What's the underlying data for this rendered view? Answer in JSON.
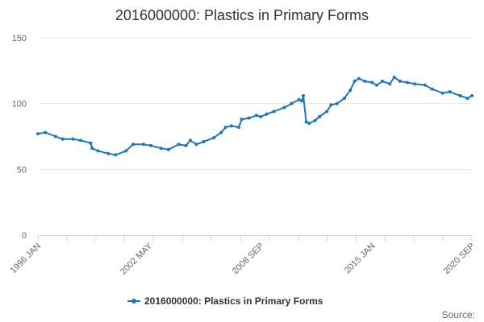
{
  "chart_data": {
    "type": "line",
    "title": "2016000000: Plastics in Primary Forms",
    "xlabel": "",
    "ylabel": "",
    "x_range": [
      "1996 JAN",
      "2020 SEP"
    ],
    "x_ticks": [
      "1996 JAN",
      "2002 MAY",
      "2008 SEP",
      "2015 JAN",
      "2020 SEP"
    ],
    "ylim": [
      0,
      150
    ],
    "y_ticks": [
      0,
      50,
      100,
      150
    ],
    "grid": true,
    "legend_position": "bottom",
    "series": [
      {
        "name": "2016000000: Plastics in Primary Forms",
        "color": "#1f77b4",
        "marker": "circle",
        "points": [
          [
            "1996-01",
            77
          ],
          [
            "1996-06",
            78
          ],
          [
            "1997-01",
            75
          ],
          [
            "1997-06",
            73
          ],
          [
            "1998-01",
            73
          ],
          [
            "1998-06",
            72
          ],
          [
            "1999-01",
            70
          ],
          [
            "1999-02",
            66
          ],
          [
            "1999-06",
            64
          ],
          [
            "2000-01",
            62
          ],
          [
            "2000-06",
            61
          ],
          [
            "2001-01",
            64
          ],
          [
            "2001-06",
            69
          ],
          [
            "2002-01",
            69
          ],
          [
            "2002-06",
            68
          ],
          [
            "2003-01",
            66
          ],
          [
            "2003-06",
            65
          ],
          [
            "2004-01",
            69
          ],
          [
            "2004-06",
            68
          ],
          [
            "2004-09",
            72
          ],
          [
            "2005-01",
            69
          ],
          [
            "2005-06",
            71
          ],
          [
            "2006-01",
            74
          ],
          [
            "2006-06",
            78
          ],
          [
            "2006-09",
            82
          ],
          [
            "2007-01",
            83
          ],
          [
            "2007-06",
            82
          ],
          [
            "2007-08",
            88
          ],
          [
            "2008-01",
            89
          ],
          [
            "2008-06",
            91
          ],
          [
            "2008-09",
            90
          ],
          [
            "2009-01",
            92
          ],
          [
            "2009-06",
            94
          ],
          [
            "2010-01",
            97
          ],
          [
            "2010-06",
            100
          ],
          [
            "2010-11",
            103
          ],
          [
            "2011-01",
            102
          ],
          [
            "2011-02",
            106
          ],
          [
            "2011-04",
            86
          ],
          [
            "2011-06",
            85
          ],
          [
            "2011-10",
            87
          ],
          [
            "2012-01",
            90
          ],
          [
            "2012-06",
            94
          ],
          [
            "2012-09",
            99
          ],
          [
            "2013-01",
            100
          ],
          [
            "2013-06",
            104
          ],
          [
            "2013-10",
            110
          ],
          [
            "2014-01",
            117
          ],
          [
            "2014-04",
            119
          ],
          [
            "2014-08",
            117
          ],
          [
            "2015-01",
            116
          ],
          [
            "2015-04",
            114
          ],
          [
            "2015-08",
            117
          ],
          [
            "2016-01",
            115
          ],
          [
            "2016-04",
            120
          ],
          [
            "2016-08",
            117
          ],
          [
            "2017-01",
            116
          ],
          [
            "2017-06",
            115
          ],
          [
            "2018-01",
            114
          ],
          [
            "2018-06",
            111
          ],
          [
            "2019-01",
            108
          ],
          [
            "2019-06",
            109
          ],
          [
            "2020-01",
            106
          ],
          [
            "2020-06",
            104
          ],
          [
            "2020-09",
            106
          ]
        ]
      }
    ]
  },
  "legend": {
    "label": "2016000000: Plastics in Primary Forms"
  },
  "credits": {
    "label": "Source:"
  }
}
